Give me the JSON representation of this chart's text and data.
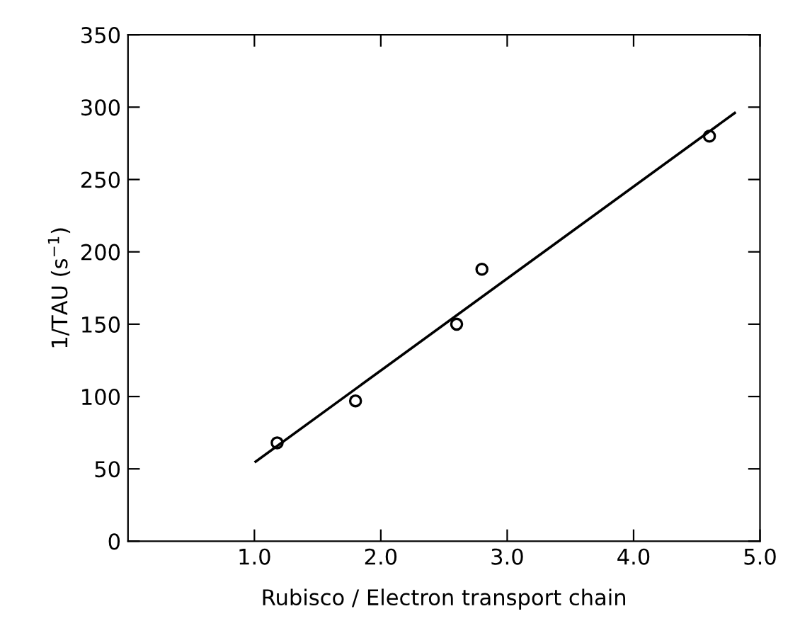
{
  "chart_data": {
    "type": "scatter",
    "xlabel": "Rubisco / Electron transport chain",
    "ylabel": "1/TAU (s$^{−1}$)",
    "xlim": [
      0,
      5.0
    ],
    "ylim": [
      0,
      350
    ],
    "xticks": [
      {
        "value": 1.0,
        "label": "1.0"
      },
      {
        "value": 2.0,
        "label": "2.0"
      },
      {
        "value": 3.0,
        "label": "3.0"
      },
      {
        "value": 4.0,
        "label": "4.0"
      },
      {
        "value": 5.0,
        "label": "5.0"
      }
    ],
    "yticks": [
      0,
      50,
      100,
      150,
      200,
      250,
      300,
      350
    ],
    "grid": false,
    "legend": false,
    "series": [
      {
        "color": "#000000",
        "marker": "circle",
        "x": [
          1.18,
          1.8,
          2.6,
          2.8,
          4.6
        ],
        "values": [
          68,
          97,
          150,
          188,
          280
        ]
      },
      {
        "type": "line",
        "color": "#000000",
        "marker": "none",
        "line_style": "solid",
        "x": [
          1.01,
          4.8
        ],
        "values": [
          55,
          296
        ]
      }
    ]
  }
}
